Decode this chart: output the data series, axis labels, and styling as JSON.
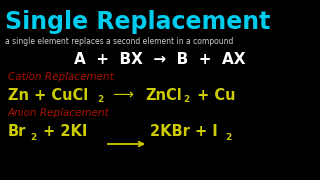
{
  "background_color": "#000000",
  "title": "Single Replacement",
  "title_color": "#00ccee",
  "subtitle": "a single element replaces a second element in a compound",
  "subtitle_color": "#cccccc",
  "formula_general_color": "#ffffff",
  "cation_label": "Cation Replacement",
  "cation_color": "#aa1100",
  "anion_label": "Anion Replacement",
  "anion_color": "#aa1100",
  "eq_color": "#cccc00"
}
